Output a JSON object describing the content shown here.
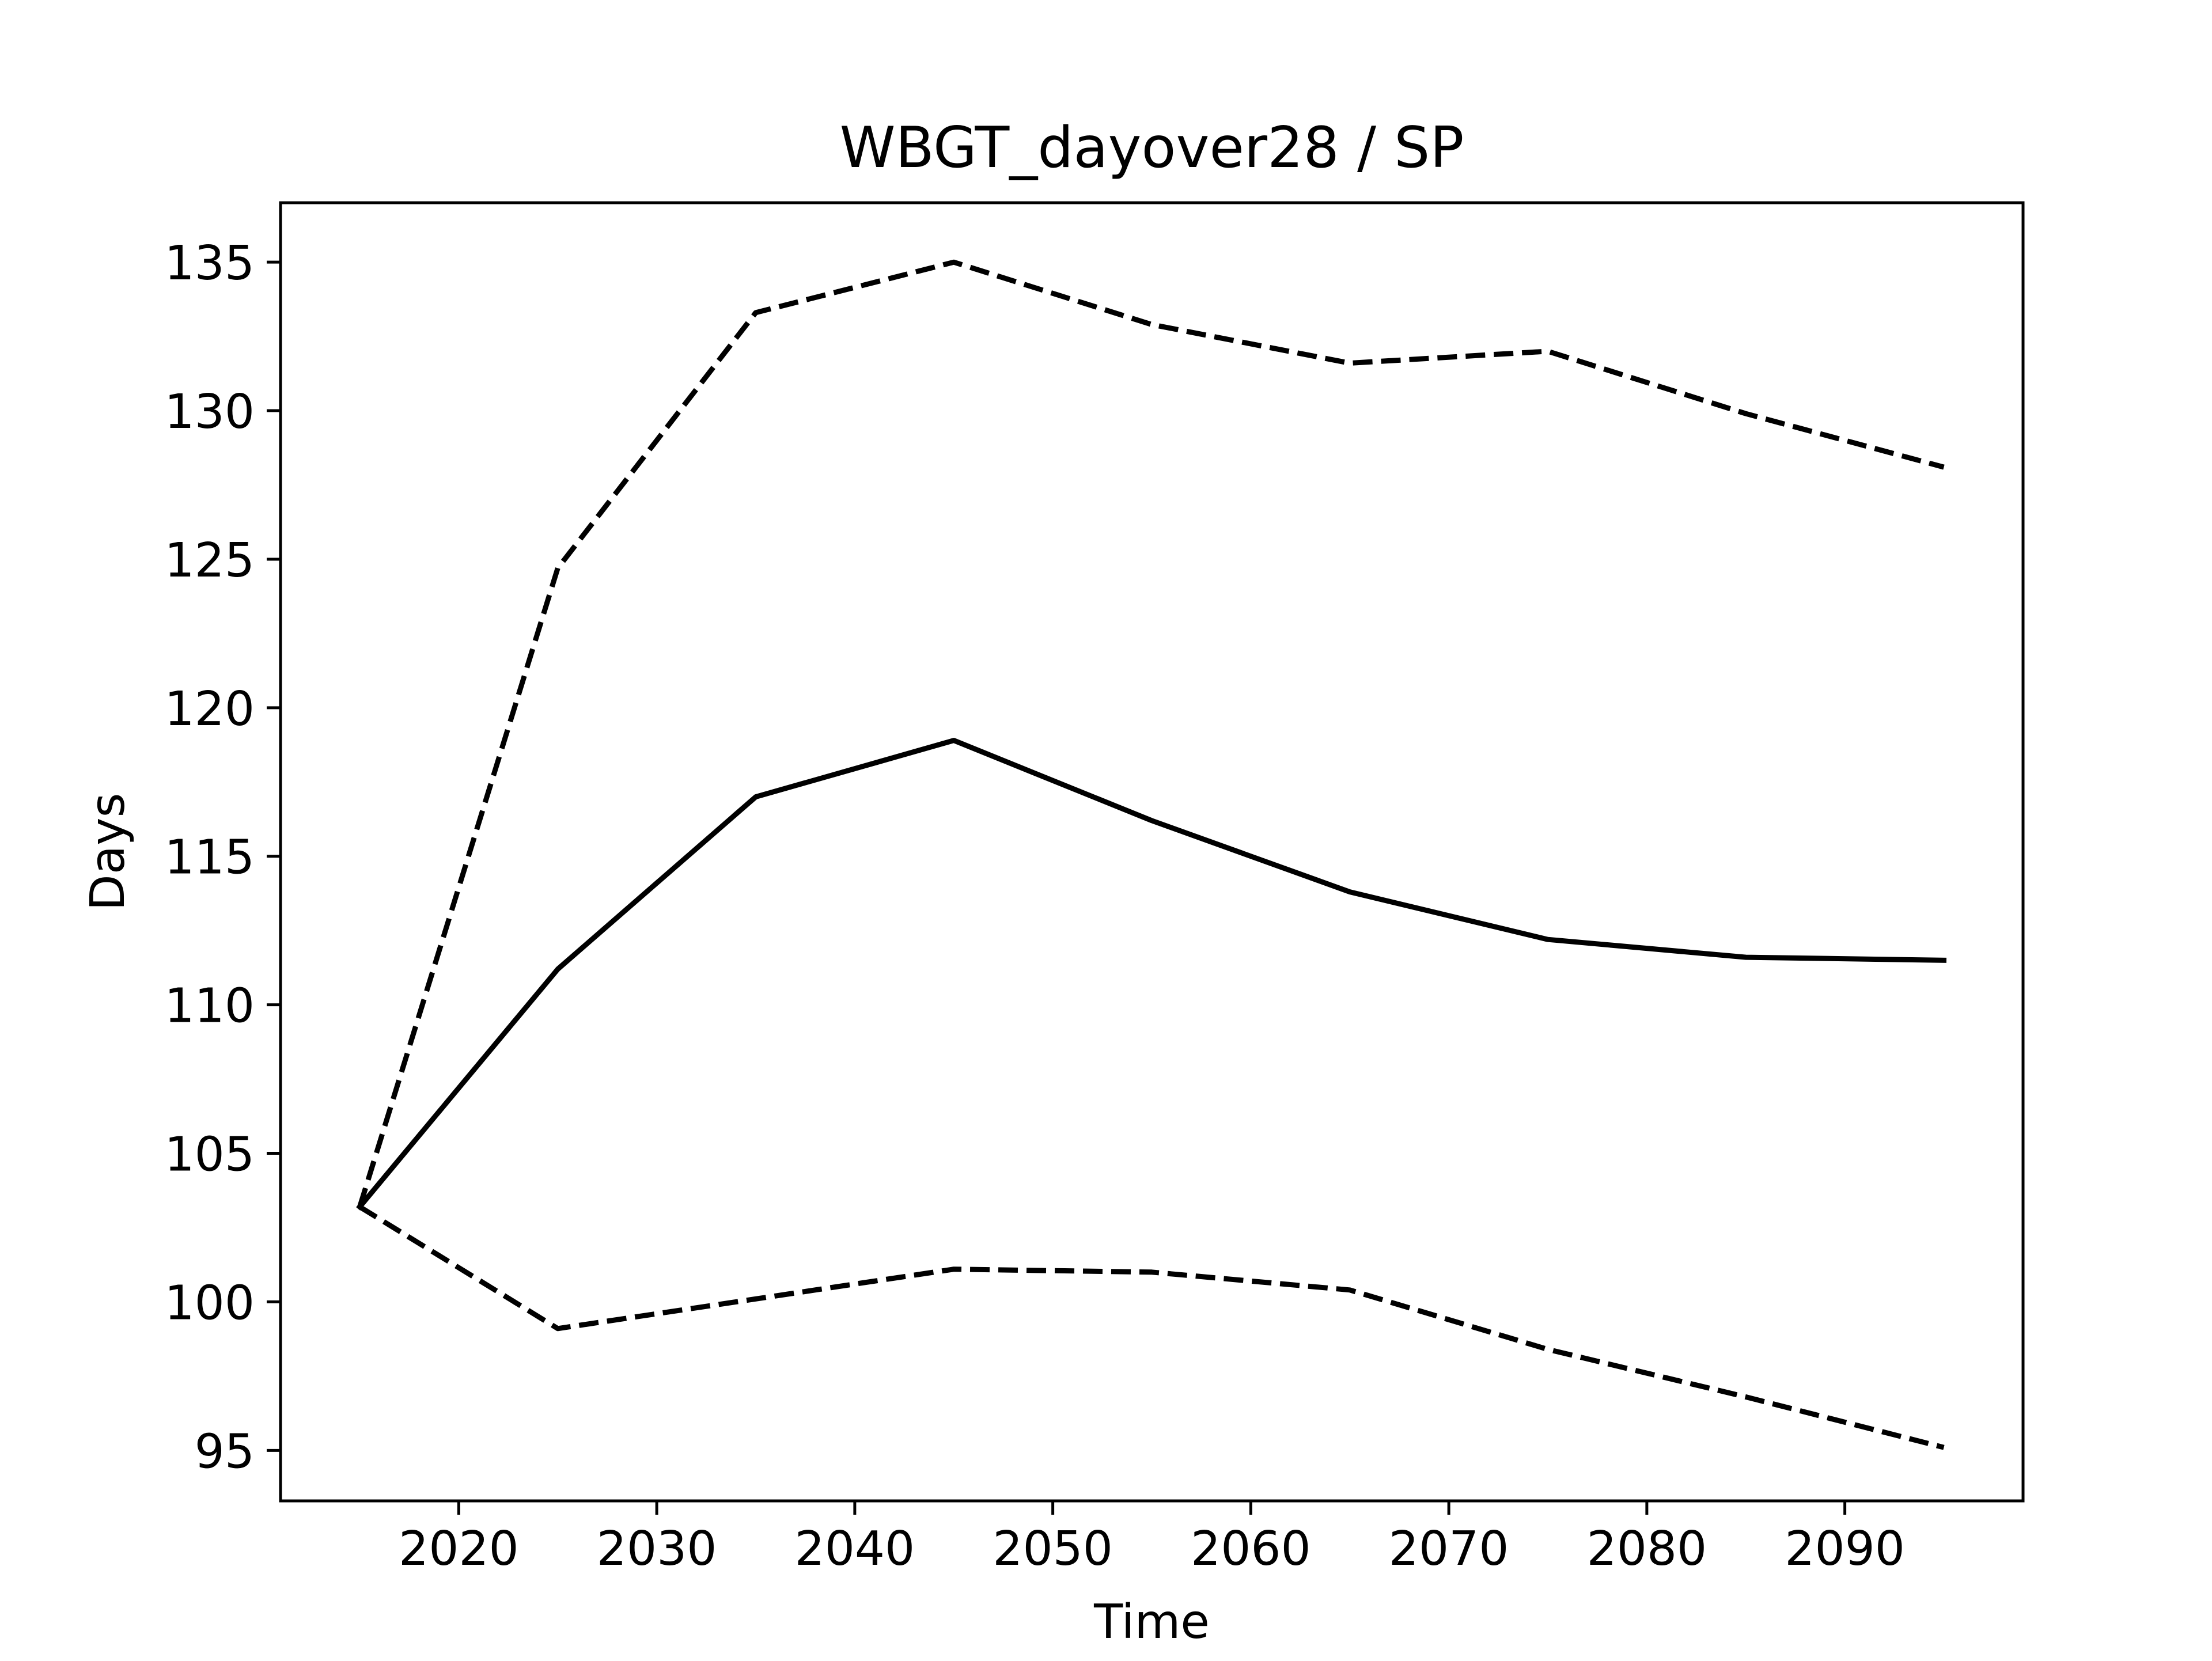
{
  "chart_data": {
    "type": "line",
    "title": "WBGT_dayover28 / SP",
    "xlabel": "Time",
    "ylabel": "Days",
    "xlim": [
      2011,
      2099
    ],
    "ylim": [
      93.3,
      137.0
    ],
    "xticks": [
      2020,
      2030,
      2040,
      2050,
      2060,
      2070,
      2080,
      2090
    ],
    "yticks": [
      95,
      100,
      105,
      110,
      115,
      120,
      125,
      130,
      135
    ],
    "grid": false,
    "legend": "none",
    "line_color": "#000000",
    "x": [
      2015,
      2025,
      2035,
      2045,
      2055,
      2065,
      2075,
      2085,
      2095
    ],
    "series": [
      {
        "style": "dashed",
        "values": [
          103.2,
          124.7,
          133.3,
          135.0,
          132.9,
          131.6,
          132.0,
          129.9,
          128.1
        ]
      },
      {
        "style": "solid",
        "values": [
          103.2,
          111.2,
          117.0,
          118.9,
          116.2,
          113.8,
          112.2,
          111.6,
          111.5
        ]
      },
      {
        "style": "dashed",
        "values": [
          103.2,
          99.1,
          100.1,
          101.1,
          101.0,
          100.4,
          98.4,
          96.8,
          95.1
        ]
      }
    ]
  }
}
